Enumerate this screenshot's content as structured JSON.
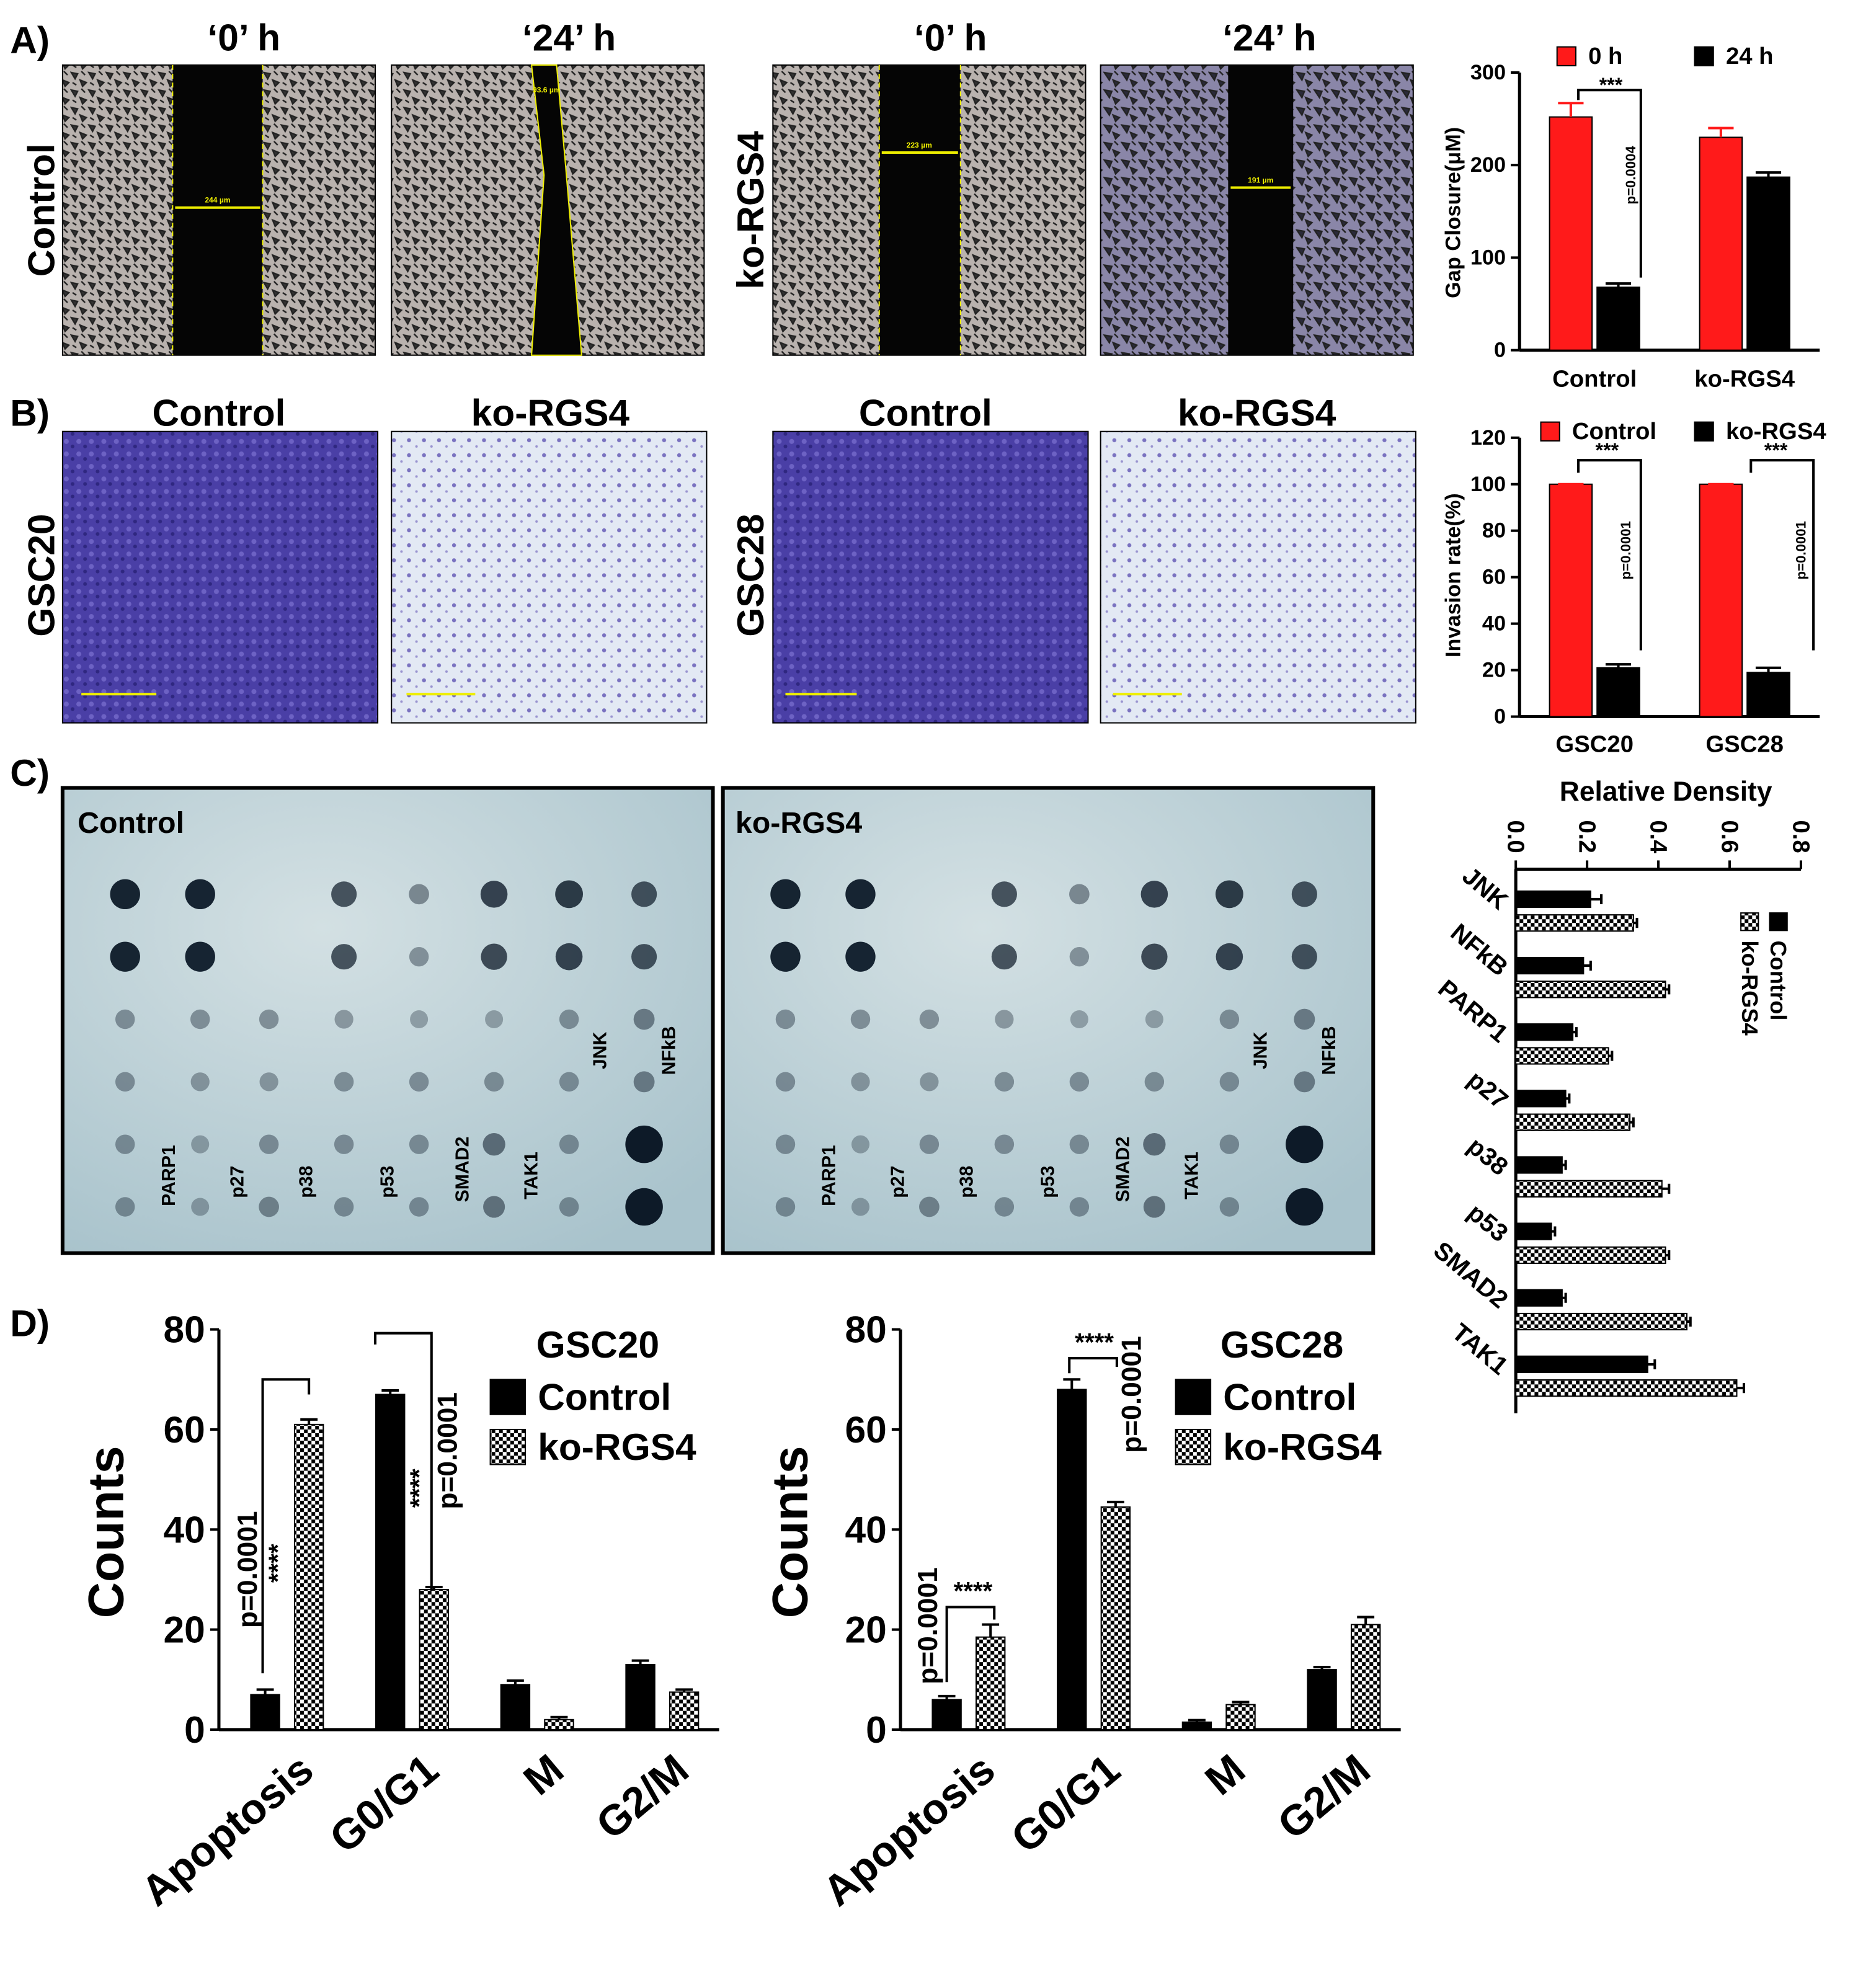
{
  "figure": {
    "panel_labels": [
      "A)",
      "B)",
      "C)",
      "D)"
    ],
    "a_column_titles": [
      "‘0’ h",
      "‘24’ h",
      "‘0’ h",
      "‘24’ h"
    ],
    "a_row_labels": [
      "Control",
      "ko-RGS4"
    ],
    "a_measurements": [
      "244 µm",
      "93.6 µm",
      "223 µm",
      "191 µm"
    ],
    "b_column_titles": [
      "Control",
      "ko-RGS4",
      "Control",
      "ko-RGS4"
    ],
    "b_row_labels": [
      "GSC20",
      "GSC28"
    ],
    "c_blot_titles": [
      "Control",
      "ko-RGS4"
    ],
    "c_spot_labels": [
      "PARP1",
      "p27",
      "p38",
      "p53",
      "SMAD2",
      "TAK1",
      "JNK",
      "NFkB"
    ]
  },
  "chart_data": [
    {
      "type": "bar",
      "y_label": "Gap Closure(μM)",
      "categories": [
        "Control",
        "ko-RGS4"
      ],
      "series": [
        {
          "name": "0 h",
          "color": "#ff1a1a",
          "values": [
            252,
            230
          ],
          "errors": [
            15,
            10
          ]
        },
        {
          "name": "24 h",
          "color": "#000000",
          "values": [
            68,
            187
          ],
          "errors": [
            4,
            5
          ]
        }
      ],
      "ylim": [
        0,
        300
      ],
      "yticks": [
        0,
        100,
        200,
        300
      ],
      "annotations": [
        "***",
        "p=0.0004"
      ]
    },
    {
      "type": "bar",
      "y_label": "Invasion rate(%)",
      "categories": [
        "GSC20",
        "GSC28"
      ],
      "series": [
        {
          "name": "Control",
          "color": "#ff1a1a",
          "values": [
            100,
            100
          ],
          "errors": [
            0,
            0
          ]
        },
        {
          "name": "ko-RGS4",
          "color": "#000000",
          "values": [
            21,
            19
          ],
          "errors": [
            1.5,
            2
          ]
        }
      ],
      "ylim": [
        0,
        120
      ],
      "yticks": [
        0,
        20,
        40,
        60,
        80,
        100,
        120
      ],
      "annotations": [
        "***",
        "p=0.0001",
        "***",
        "p=0.0001"
      ]
    },
    {
      "type": "hbar",
      "x_label": "Relative Density",
      "categories": [
        "JNK",
        "NFkB",
        "PARP1",
        "p27",
        "p38",
        "p53",
        "SMAD2",
        "TAK1"
      ],
      "series": [
        {
          "name": "Control",
          "color": "#000000",
          "values": [
            0.21,
            0.19,
            0.16,
            0.14,
            0.13,
            0.1,
            0.13,
            0.37
          ],
          "errors": [
            0.03,
            0.02,
            0.01,
            0.01,
            0.01,
            0.01,
            0.01,
            0.02
          ]
        },
        {
          "name": "ko-RGS4",
          "color": "#000000",
          "pattern": "checker",
          "values": [
            0.33,
            0.42,
            0.26,
            0.32,
            0.41,
            0.42,
            0.48,
            0.62
          ],
          "errors": [
            0.01,
            0.01,
            0.01,
            0.01,
            0.02,
            0.01,
            0.01,
            0.02
          ]
        }
      ],
      "xlim": [
        0,
        0.8
      ],
      "xticks": [
        {
          "value": 0,
          "label": "0.0"
        },
        0.2,
        0.4,
        0.6,
        0.8
      ]
    },
    {
      "type": "bar",
      "y_label": "Counts",
      "legend_title": "GSC20",
      "categories": [
        "Apoptosis",
        "G0/G1",
        "M",
        "G2/M"
      ],
      "series": [
        {
          "name": "Control",
          "color": "#000000",
          "values": [
            7,
            67,
            9,
            13
          ],
          "errors": [
            1,
            0.8,
            0.8,
            0.8
          ]
        },
        {
          "name": "ko-RGS4",
          "color": "#000000",
          "pattern": "checker",
          "values": [
            61,
            28,
            2,
            7.5
          ],
          "errors": [
            1,
            0.5,
            0.5,
            0.5
          ]
        }
      ],
      "ylim": [
        0,
        80
      ],
      "yticks": [
        0,
        20,
        40,
        60,
        80
      ],
      "annotations": [
        "p=0.0001",
        "****",
        "****",
        "p=0.0001"
      ]
    },
    {
      "type": "bar",
      "y_label": "Counts",
      "legend_title": "GSC28",
      "categories": [
        "Apoptosis",
        "G0/G1",
        "M",
        "G2/M"
      ],
      "series": [
        {
          "name": "Control",
          "color": "#000000",
          "values": [
            6,
            68,
            1.5,
            12
          ],
          "errors": [
            0.7,
            2,
            0.4,
            0.5
          ]
        },
        {
          "name": "ko-RGS4",
          "color": "#000000",
          "pattern": "checker",
          "values": [
            18.5,
            44.5,
            5,
            21
          ],
          "errors": [
            2.5,
            1,
            0.5,
            1.5
          ]
        }
      ],
      "ylim": [
        0,
        80
      ],
      "yticks": [
        0,
        20,
        40,
        60,
        80
      ],
      "annotations": [
        "p=0.0001",
        "****",
        "****",
        "p=0.0001"
      ]
    }
  ]
}
